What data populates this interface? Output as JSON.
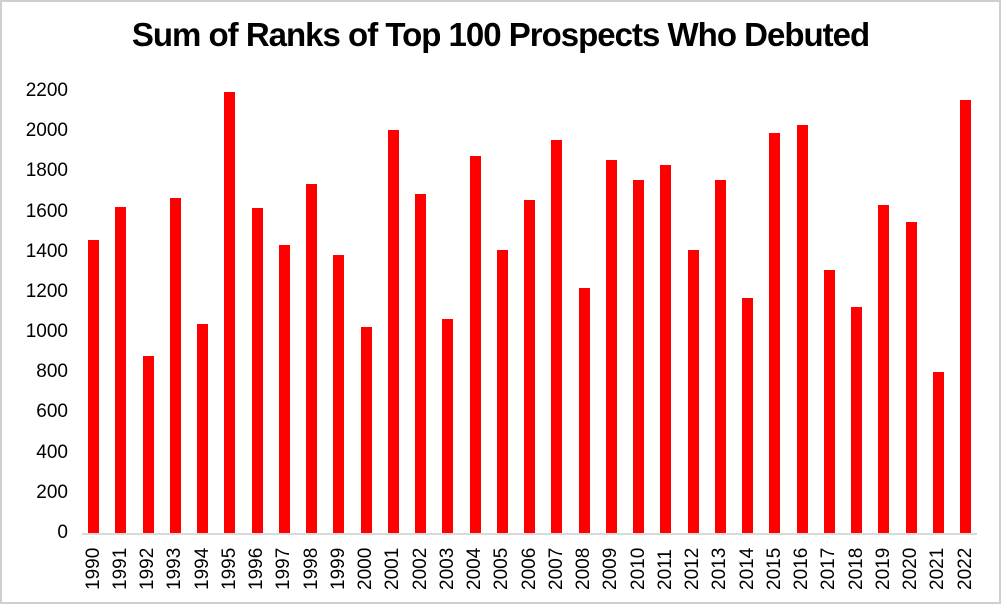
{
  "chart_data": {
    "type": "bar",
    "title": "Sum of Ranks of Top 100 Prospects Who Debuted",
    "categories": [
      "1990",
      "1991",
      "1992",
      "1993",
      "1994",
      "1995",
      "1996",
      "1997",
      "1998",
      "1999",
      "2000",
      "2001",
      "2002",
      "2003",
      "2004",
      "2005",
      "2006",
      "2007",
      "2008",
      "2009",
      "2010",
      "2011",
      "2012",
      "2013",
      "2014",
      "2015",
      "2016",
      "2017",
      "2018",
      "2019",
      "2020",
      "2021",
      "2022"
    ],
    "values": [
      1460,
      1625,
      880,
      1665,
      1040,
      2195,
      1620,
      1435,
      1735,
      1385,
      1025,
      2005,
      1685,
      1065,
      1875,
      1410,
      1655,
      1955,
      1220,
      1855,
      1755,
      1830,
      1410,
      1755,
      1170,
      1990,
      2030,
      1310,
      1125,
      1635,
      1550,
      800,
      2155
    ],
    "xlabel": "",
    "ylabel": "",
    "ylim": [
      0,
      2200
    ],
    "yticks": [
      0,
      200,
      400,
      600,
      800,
      1000,
      1200,
      1400,
      1600,
      1800,
      2000,
      2200
    ],
    "x_tick_rotation": -90,
    "grid": false,
    "legend": "none",
    "bar_color": "#FF0000",
    "axis_line_color": "#D9D9D9",
    "text_color": "#000000",
    "background_color": "#FFFFFF",
    "border_color": "#CFCFCF"
  }
}
